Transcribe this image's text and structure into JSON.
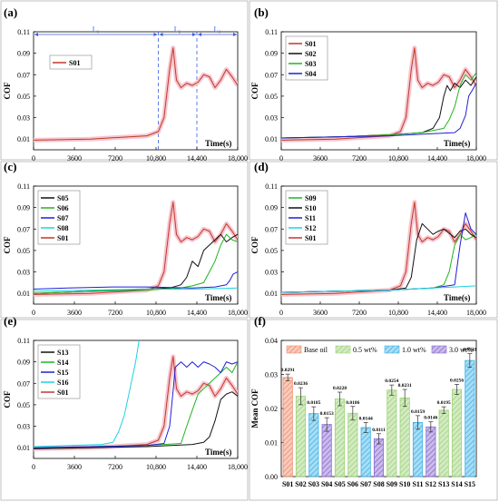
{
  "colors": {
    "S01": "#c0392b",
    "S02": "#111111",
    "S03": "#1fb51f",
    "S04": "#1f1fd6",
    "S05": "#111111",
    "S06": "#1fb51f",
    "S07": "#1f1fd6",
    "S08": "#19d3e0",
    "S09": "#1fb51f",
    "S10": "#111111",
    "S11": "#1f1fd6",
    "S12": "#19d3e0",
    "S13": "#111111",
    "S14": "#1fb51f",
    "S15": "#1f1fd6",
    "S16": "#19d3e0",
    "base": "#f08c6c",
    "w05": "#9ed27a",
    "w10": "#3fb3e6",
    "w30": "#8a6bd1",
    "band": "#f7c6cf",
    "dash": "#3b5bdb"
  },
  "chart_data": [
    {
      "panel": "(a)",
      "type": "line",
      "xlabel": "Time(s)",
      "ylabel": "COF",
      "xlim": [
        0,
        18000
      ],
      "ylim": [
        0,
        0.11
      ],
      "x_ticks": [
        "0",
        "3600",
        "7200",
        "10,800",
        "14,400",
        "18,000"
      ],
      "y_ticks": [
        "0.01",
        "0.03",
        "0.05",
        "0.07",
        "0.09",
        "0.11"
      ],
      "regions": [
        "L₁",
        "L₂",
        "L₃"
      ],
      "region_bounds": [
        11000,
        14400
      ],
      "legend": [
        "S01"
      ],
      "series": [
        {
          "name": "S01",
          "x": [
            0,
            5000,
            10000,
            11000,
            11500,
            12000,
            12300,
            12600,
            13000,
            13500,
            14000,
            14500,
            15000,
            15500,
            16000,
            16500,
            17000,
            17500,
            18000
          ],
          "y": [
            0.009,
            0.01,
            0.013,
            0.017,
            0.03,
            0.075,
            0.095,
            0.065,
            0.058,
            0.062,
            0.06,
            0.063,
            0.07,
            0.068,
            0.058,
            0.065,
            0.075,
            0.068,
            0.06
          ]
        }
      ]
    },
    {
      "panel": "(b)",
      "type": "line",
      "xlabel": "Time(s)",
      "ylabel": "COF",
      "xlim": [
        0,
        18000
      ],
      "ylim": [
        0,
        0.11
      ],
      "x_ticks": [
        "0",
        "3600",
        "7200",
        "10,800",
        "14,400",
        "18,000"
      ],
      "y_ticks": [
        "0.01",
        "0.03",
        "0.05",
        "0.07",
        "0.09",
        "0.11"
      ],
      "legend": [
        "S01",
        "S02",
        "S03",
        "S04"
      ],
      "series": [
        {
          "name": "S01",
          "x": [
            0,
            5000,
            10000,
            11000,
            11500,
            12000,
            12300,
            12600,
            13000,
            13500,
            14000,
            14500,
            15000,
            15500,
            16000,
            16500,
            17000,
            17500,
            18000
          ],
          "y": [
            0.009,
            0.01,
            0.013,
            0.017,
            0.03,
            0.075,
            0.095,
            0.065,
            0.058,
            0.062,
            0.06,
            0.063,
            0.07,
            0.068,
            0.058,
            0.065,
            0.075,
            0.068,
            0.06
          ]
        },
        {
          "name": "S02",
          "x": [
            0,
            5000,
            10000,
            13000,
            14000,
            14600,
            15000,
            15300,
            15600,
            16000,
            16500,
            17000,
            17500,
            18000
          ],
          "y": [
            0.011,
            0.012,
            0.014,
            0.016,
            0.02,
            0.03,
            0.05,
            0.06,
            0.055,
            0.062,
            0.058,
            0.065,
            0.06,
            0.068
          ]
        },
        {
          "name": "S03",
          "x": [
            0,
            5000,
            10000,
            13000,
            14000,
            15000,
            15500,
            16000,
            16500,
            17000,
            17500,
            18000
          ],
          "y": [
            0.011,
            0.012,
            0.014,
            0.016,
            0.018,
            0.02,
            0.028,
            0.04,
            0.06,
            0.07,
            0.065,
            0.072
          ]
        },
        {
          "name": "S04",
          "x": [
            0,
            5000,
            10000,
            14000,
            16000,
            16500,
            17000,
            17300,
            17600,
            18000
          ],
          "y": [
            0.011,
            0.012,
            0.013,
            0.015,
            0.016,
            0.02,
            0.032,
            0.05,
            0.055,
            0.062
          ]
        }
      ]
    },
    {
      "panel": "(c)",
      "type": "line",
      "xlabel": "Time(s)",
      "ylabel": "COF",
      "xlim": [
        0,
        18000
      ],
      "ylim": [
        0,
        0.11
      ],
      "x_ticks": [
        "0",
        "3600",
        "7200",
        "10,800",
        "14,400",
        "18,000"
      ],
      "y_ticks": [
        "0.01",
        "0.03",
        "0.05",
        "0.07",
        "0.09",
        "0.11"
      ],
      "legend": [
        "S05",
        "S06",
        "S07",
        "S08",
        "S01"
      ],
      "series": [
        {
          "name": "S05",
          "x": [
            0,
            5000,
            10000,
            12000,
            13000,
            13500,
            14000,
            14500,
            15000,
            15500,
            16000,
            16500,
            17000,
            17500,
            18000
          ],
          "y": [
            0.01,
            0.012,
            0.014,
            0.015,
            0.018,
            0.025,
            0.04,
            0.035,
            0.05,
            0.055,
            0.06,
            0.065,
            0.058,
            0.062,
            0.065
          ]
        },
        {
          "name": "S06",
          "x": [
            0,
            5000,
            10000,
            13000,
            14000,
            15000,
            15500,
            16000,
            16500,
            17000,
            17500,
            18000
          ],
          "y": [
            0.01,
            0.012,
            0.013,
            0.015,
            0.017,
            0.02,
            0.03,
            0.04,
            0.055,
            0.065,
            0.06,
            0.058
          ]
        },
        {
          "name": "S07",
          "x": [
            0,
            3000,
            7000,
            10000,
            14000,
            16000,
            17000,
            17300,
            17600,
            18000
          ],
          "y": [
            0.014,
            0.015,
            0.016,
            0.016,
            0.015,
            0.016,
            0.018,
            0.022,
            0.028,
            0.03
          ]
        },
        {
          "name": "S08",
          "x": [
            0,
            5000,
            10000,
            14000,
            18000
          ],
          "y": [
            0.012,
            0.013,
            0.014,
            0.014,
            0.015
          ]
        },
        {
          "name": "S01",
          "x": [
            0,
            5000,
            10000,
            11000,
            11500,
            12000,
            12300,
            12600,
            13000,
            13500,
            14000,
            14500,
            15000,
            15500,
            16000,
            16500,
            17000,
            17500,
            18000
          ],
          "y": [
            0.009,
            0.01,
            0.013,
            0.017,
            0.03,
            0.075,
            0.095,
            0.065,
            0.058,
            0.062,
            0.06,
            0.063,
            0.07,
            0.068,
            0.058,
            0.065,
            0.075,
            0.068,
            0.06
          ]
        }
      ]
    },
    {
      "panel": "(d)",
      "type": "line",
      "xlabel": "Time(s)",
      "ylabel": "COF",
      "xlim": [
        0,
        18000
      ],
      "ylim": [
        0,
        0.11
      ],
      "x_ticks": [
        "0",
        "3600",
        "7200",
        "10,800",
        "14,400",
        "18,000"
      ],
      "y_ticks": [
        "0.01",
        "0.03",
        "0.05",
        "0.07",
        "0.09",
        "0.11"
      ],
      "legend": [
        "S09",
        "S10",
        "S11",
        "S12",
        "S01"
      ],
      "series": [
        {
          "name": "S09",
          "x": [
            0,
            5000,
            10000,
            14000,
            15000,
            15500,
            16000,
            16500,
            17000,
            17500,
            18000
          ],
          "y": [
            0.011,
            0.012,
            0.013,
            0.015,
            0.018,
            0.03,
            0.055,
            0.065,
            0.06,
            0.062,
            0.065
          ]
        },
        {
          "name": "S10",
          "x": [
            0,
            5000,
            10000,
            11500,
            12000,
            12500,
            13000,
            13500,
            14000,
            14500,
            15000,
            15500,
            16000,
            16500,
            17000,
            17500,
            18000
          ],
          "y": [
            0.011,
            0.012,
            0.013,
            0.015,
            0.025,
            0.06,
            0.075,
            0.07,
            0.065,
            0.068,
            0.07,
            0.066,
            0.062,
            0.068,
            0.07,
            0.065,
            0.062
          ]
        },
        {
          "name": "S11",
          "x": [
            0,
            5000,
            10000,
            14000,
            16000,
            16500,
            17000,
            17500,
            18000
          ],
          "y": [
            0.011,
            0.012,
            0.013,
            0.015,
            0.018,
            0.055,
            0.085,
            0.07,
            0.065
          ]
        },
        {
          "name": "S12",
          "x": [
            0,
            5000,
            10000,
            14000,
            18000
          ],
          "y": [
            0.011,
            0.012,
            0.013,
            0.015,
            0.017
          ]
        },
        {
          "name": "S01",
          "x": [
            0,
            5000,
            10000,
            11000,
            11500,
            12000,
            12300,
            12600,
            13000,
            13500,
            14000,
            14500,
            15000,
            15500,
            16000,
            16500,
            17000,
            17500,
            18000
          ],
          "y": [
            0.009,
            0.01,
            0.013,
            0.017,
            0.03,
            0.075,
            0.095,
            0.065,
            0.058,
            0.062,
            0.06,
            0.063,
            0.07,
            0.068,
            0.058,
            0.065,
            0.075,
            0.068,
            0.06
          ]
        }
      ]
    },
    {
      "panel": "(e)",
      "type": "line",
      "xlabel": "Time(s)",
      "ylabel": "COF",
      "xlim": [
        0,
        18000
      ],
      "ylim": [
        0,
        0.11
      ],
      "x_ticks": [
        "0",
        "3600",
        "7200",
        "10,800",
        "14,400",
        "18,000"
      ],
      "y_ticks": [
        "0.01",
        "0.03",
        "0.05",
        "0.07",
        "0.09",
        "0.11"
      ],
      "legend": [
        "S13",
        "S14",
        "S15",
        "S16",
        "S01"
      ],
      "series": [
        {
          "name": "S13",
          "x": [
            0,
            5000,
            10000,
            14000,
            15000,
            15500,
            16000,
            16500,
            17000,
            17500,
            18000
          ],
          "y": [
            0.009,
            0.01,
            0.011,
            0.013,
            0.015,
            0.02,
            0.035,
            0.055,
            0.06,
            0.062,
            0.058
          ]
        },
        {
          "name": "S14",
          "x": [
            0,
            5000,
            10000,
            13000,
            13500,
            14000,
            14500,
            15000,
            15500,
            16000,
            16500,
            17000,
            17500,
            18000
          ],
          "y": [
            0.01,
            0.011,
            0.012,
            0.014,
            0.03,
            0.045,
            0.06,
            0.065,
            0.07,
            0.075,
            0.08,
            0.085,
            0.08,
            0.09
          ]
        },
        {
          "name": "S15",
          "x": [
            0,
            5000,
            10000,
            11500,
            12000,
            12500,
            13000,
            13500,
            14000,
            14500,
            15000,
            15500,
            16000,
            16500,
            17000,
            17500,
            18000
          ],
          "y": [
            0.01,
            0.011,
            0.012,
            0.014,
            0.03,
            0.085,
            0.09,
            0.085,
            0.09,
            0.085,
            0.09,
            0.088,
            0.085,
            0.08,
            0.09,
            0.088,
            0.09
          ]
        },
        {
          "name": "S16",
          "x": [
            0,
            3000,
            6000,
            7000,
            7500,
            8000,
            8500,
            9000,
            9300,
            9600,
            10000
          ],
          "y": [
            0.011,
            0.012,
            0.013,
            0.015,
            0.025,
            0.04,
            0.065,
            0.09,
            0.11,
            0.12,
            0.12
          ]
        },
        {
          "name": "S01",
          "x": [
            0,
            5000,
            10000,
            11000,
            11500,
            12000,
            12300,
            12600,
            13000,
            13500,
            14000,
            14500,
            15000,
            15500,
            16000,
            16500,
            17000,
            17500,
            18000
          ],
          "y": [
            0.009,
            0.01,
            0.013,
            0.017,
            0.03,
            0.075,
            0.095,
            0.065,
            0.058,
            0.062,
            0.06,
            0.063,
            0.07,
            0.068,
            0.058,
            0.065,
            0.075,
            0.068,
            0.06
          ]
        }
      ]
    },
    {
      "panel": "(f)",
      "type": "bar",
      "xlabel": "",
      "ylabel": "Mean COF",
      "ylim": [
        0,
        0.04
      ],
      "y_ticks": [
        "0.00",
        "0.01",
        "0.02",
        "0.03",
        "0.04"
      ],
      "legend": [
        {
          "label": "Base oil",
          "group": "base"
        },
        {
          "label": "0.5 wt%",
          "group": "w05"
        },
        {
          "label": "1.0 wt%",
          "group": "w10"
        },
        {
          "label": "3.0 wt%",
          "group": "w30"
        }
      ],
      "categories": [
        "S01",
        "S02",
        "S03",
        "S04",
        "S05",
        "S06",
        "S07",
        "S08",
        "S09",
        "S10",
        "S11",
        "S12",
        "S13",
        "S14",
        "S15"
      ],
      "groups": [
        "base",
        "w05",
        "w10",
        "w30",
        "w05",
        "w05",
        "w10",
        "w30",
        "w05",
        "w05",
        "w10",
        "w30",
        "w05",
        "w05",
        "w10"
      ],
      "values": [
        0.0291,
        0.0236,
        0.0185,
        0.0153,
        0.0228,
        0.0186,
        0.0144,
        0.0111,
        0.0254,
        0.0231,
        0.0159,
        0.0146,
        0.0195,
        0.0256,
        0.0341
      ],
      "value_labels": [
        "0.0291",
        "0.0236",
        "0.0185",
        "0.0153",
        "0.0228",
        "0.0186",
        "0.0144",
        "0.0111",
        "0.0254",
        "0.0231",
        "0.0159",
        "0.0146",
        "0.0195",
        "0.0256",
        "0.0341"
      ],
      "errors": [
        0.001,
        0.0025,
        0.002,
        0.002,
        0.002,
        0.002,
        0.0015,
        0.0015,
        0.0015,
        0.0025,
        0.002,
        0.0015,
        0.001,
        0.0015,
        0.002
      ]
    }
  ]
}
